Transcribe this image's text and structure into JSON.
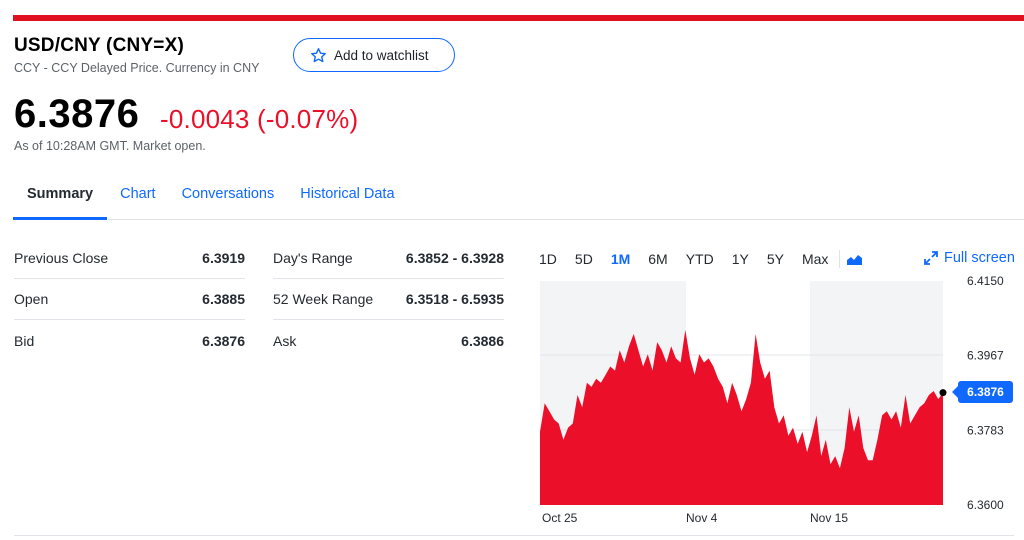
{
  "quote": {
    "title": "USD/CNY (CNY=X)",
    "subtitle": "CCY - CCY Delayed Price. Currency in CNY",
    "price": "6.3876",
    "change": "-0.0043 (-0.07%)",
    "as_of": "As of 10:28AM GMT. Market open.",
    "watchlist_label": "Add to watchlist"
  },
  "colors": {
    "accent": "#0f69ff",
    "negative": "#eb0f29",
    "brand_bar": "#e0121f"
  },
  "tabs": [
    {
      "label": "Summary",
      "active": true
    },
    {
      "label": "Chart"
    },
    {
      "label": "Conversations"
    },
    {
      "label": "Historical Data"
    }
  ],
  "stats": {
    "left": [
      {
        "label": "Previous Close",
        "value": "6.3919"
      },
      {
        "label": "Open",
        "value": "6.3885"
      },
      {
        "label": "Bid",
        "value": "6.3876"
      }
    ],
    "right": [
      {
        "label": "Day's Range",
        "value": "6.3852 - 6.3928"
      },
      {
        "label": "52 Week Range",
        "value": "6.3518 - 6.5935"
      },
      {
        "label": "Ask",
        "value": "6.3886"
      }
    ]
  },
  "chart_controls": {
    "ranges": [
      "1D",
      "5D",
      "1M",
      "6M",
      "YTD",
      "1Y",
      "5Y",
      "Max"
    ],
    "active_range": "1M",
    "chart_type_icon": "area-chart-icon",
    "fullscreen_label": "Full screen"
  },
  "chart_data": {
    "type": "area",
    "series": [
      {
        "values": [
          6.378,
          6.385,
          6.383,
          6.381,
          6.38,
          6.376,
          6.379,
          6.38,
          6.387,
          6.384,
          6.39,
          6.389,
          6.391,
          6.39,
          6.392,
          6.394,
          6.393,
          6.398,
          6.395,
          6.399,
          6.402,
          6.398,
          6.394,
          6.397,
          6.393,
          6.4,
          6.398,
          6.395,
          6.399,
          6.396,
          6.395,
          6.403,
          6.396,
          6.392,
          6.397,
          6.395,
          6.396,
          6.394,
          6.391,
          6.389,
          6.385,
          6.39,
          6.387,
          6.383,
          6.386,
          6.39,
          6.402,
          6.395,
          6.391,
          6.393,
          6.384,
          6.38,
          6.382,
          6.377,
          6.379,
          6.375,
          6.378,
          6.373,
          6.377,
          6.382,
          6.372,
          6.376,
          6.37,
          6.372,
          6.369,
          6.374,
          6.384,
          6.378,
          6.382,
          6.374,
          6.371,
          6.371,
          6.376,
          6.382,
          6.383,
          6.381,
          6.383,
          6.379,
          6.387,
          6.38,
          6.382,
          6.384,
          6.385,
          6.387,
          6.388,
          6.386,
          6.3876
        ]
      }
    ],
    "y_ticks": [
      "6.4150",
      "6.3967",
      "6.3783",
      "6.3600"
    ],
    "ylim": [
      6.36,
      6.415
    ],
    "x_ticks": [
      "Oct 25",
      "Nov 4",
      "Nov 15"
    ],
    "last_value_label": "6.3876"
  }
}
